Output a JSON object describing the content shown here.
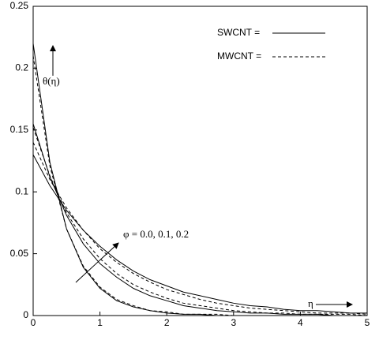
{
  "chart_data": {
    "type": "line",
    "x": [
      0,
      0.25,
      0.5,
      0.75,
      1,
      1.25,
      1.5,
      1.75,
      2,
      2.25,
      2.5,
      2.75,
      3,
      3.25,
      3.5,
      3.75,
      4,
      4.25,
      4.5,
      4.75,
      5
    ],
    "series": [
      {
        "name": "SWCNT =",
        "color": "#000000",
        "dash": "solid",
        "values": [
          0.22,
          0.124,
          0.07,
          0.039,
          0.022,
          0.012,
          0.007,
          0.004,
          0.002,
          0.001,
          0.001,
          0,
          0,
          0,
          0,
          0,
          0,
          0,
          0,
          0,
          0
        ]
      },
      {
        "name": "SWCNT =",
        "color": "#000000",
        "dash": "solid",
        "values": [
          0.155,
          0.112,
          0.081,
          0.058,
          0.042,
          0.031,
          0.022,
          0.016,
          0.012,
          0.008,
          0.006,
          0.004,
          0.003,
          0.002,
          0.002,
          0.001,
          0.001,
          0.001,
          0,
          0,
          0
        ]
      },
      {
        "name": "SWCNT =",
        "color": "#000000",
        "dash": "solid",
        "values": [
          0.13,
          0.105,
          0.085,
          0.069,
          0.056,
          0.045,
          0.036,
          0.029,
          0.024,
          0.019,
          0.016,
          0.013,
          0.01,
          0.008,
          0.007,
          0.005,
          0.004,
          0.004,
          0.003,
          0.002,
          0.002
        ]
      },
      {
        "name": "MWCNT =",
        "color": "#000000",
        "dash": "dashed",
        "values": [
          0.21,
          0.121,
          0.07,
          0.04,
          0.023,
          0.013,
          0.008,
          0.004,
          0.003,
          0.001,
          0.001,
          0.001,
          0,
          0,
          0,
          0,
          0,
          0,
          0,
          0,
          0
        ]
      },
      {
        "name": "MWCNT =",
        "color": "#000000",
        "dash": "dashed",
        "values": [
          0.152,
          0.113,
          0.083,
          0.062,
          0.046,
          0.034,
          0.025,
          0.019,
          0.014,
          0.01,
          0.008,
          0.006,
          0.004,
          0.003,
          0.002,
          0.002,
          0.001,
          0.001,
          0.001,
          0.001,
          0
        ]
      },
      {
        "name": "MWCNT =",
        "color": "#000000",
        "dash": "dashed",
        "values": [
          0.14,
          0.11,
          0.087,
          0.069,
          0.054,
          0.043,
          0.034,
          0.027,
          0.021,
          0.017,
          0.013,
          0.01,
          0.008,
          0.006,
          0.005,
          0.004,
          0.003,
          0.002,
          0.002,
          0.002,
          0.001
        ]
      }
    ],
    "xlim": [
      0,
      5
    ],
    "xticks": [
      0,
      1,
      2,
      3,
      4,
      5
    ],
    "ylim": [
      0,
      0.25
    ],
    "yticks": [
      0,
      0.05,
      0.1,
      0.15,
      0.2,
      0.25
    ],
    "annotations": [
      "θ(η)",
      "η",
      "φ = 0.0, 0.1, 0.2"
    ]
  }
}
